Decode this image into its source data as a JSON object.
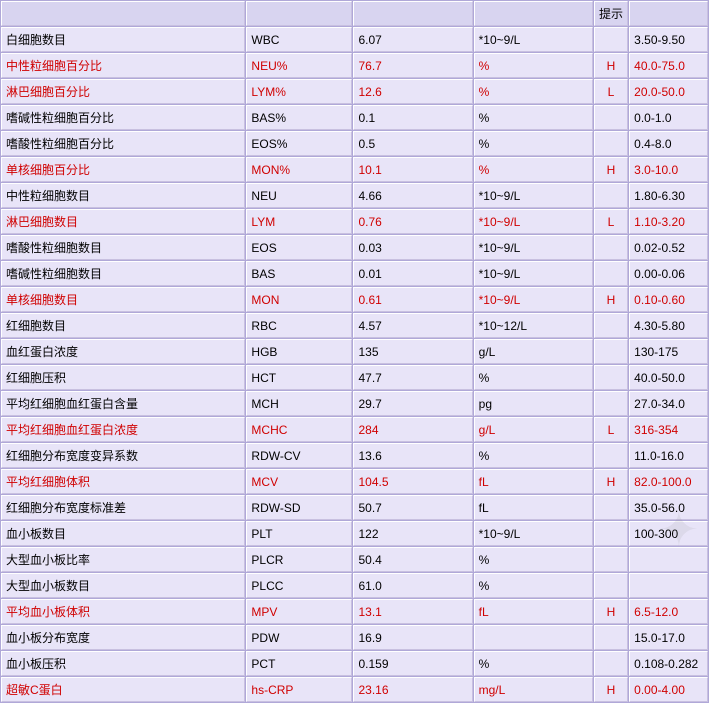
{
  "header": {
    "flag_label": "提示"
  },
  "columns": {
    "widths": {
      "name": 242,
      "code": 105,
      "value": 118,
      "unit": 118,
      "flag": 28,
      "ref": 78
    }
  },
  "colors": {
    "row_bg": "#e8e4f8",
    "grid_bg": "#b0a8d8",
    "header_bg": "#d8d4f0",
    "abnormal_text": "#d00000",
    "normal_text": "#000000",
    "border_light": "#ffffff",
    "border_dark": "#c8c0e0"
  },
  "rows": [
    {
      "name": "白细胞数目",
      "code": "WBC",
      "value": "6.07",
      "unit": "*10~9/L",
      "flag": "",
      "ref": "3.50-9.50",
      "abn": false
    },
    {
      "name": "中性粒细胞百分比",
      "code": "NEU%",
      "value": "76.7",
      "unit": "%",
      "flag": "H",
      "ref": "40.0-75.0",
      "abn": true
    },
    {
      "name": "淋巴细胞百分比",
      "code": "LYM%",
      "value": "12.6",
      "unit": "%",
      "flag": "L",
      "ref": "20.0-50.0",
      "abn": true
    },
    {
      "name": "嗜碱性粒细胞百分比",
      "code": "BAS%",
      "value": "0.1",
      "unit": "%",
      "flag": "",
      "ref": "0.0-1.0",
      "abn": false
    },
    {
      "name": "嗜酸性粒细胞百分比",
      "code": "EOS%",
      "value": "0.5",
      "unit": "%",
      "flag": "",
      "ref": "0.4-8.0",
      "abn": false
    },
    {
      "name": "单核细胞百分比",
      "code": "MON%",
      "value": "10.1",
      "unit": "%",
      "flag": "H",
      "ref": "3.0-10.0",
      "abn": true
    },
    {
      "name": "中性粒细胞数目",
      "code": "NEU",
      "value": "4.66",
      "unit": "*10~9/L",
      "flag": "",
      "ref": "1.80-6.30",
      "abn": false
    },
    {
      "name": "淋巴细胞数目",
      "code": "LYM",
      "value": "0.76",
      "unit": "*10~9/L",
      "flag": "L",
      "ref": "1.10-3.20",
      "abn": true
    },
    {
      "name": "嗜酸性粒细胞数目",
      "code": "EOS",
      "value": "0.03",
      "unit": "*10~9/L",
      "flag": "",
      "ref": "0.02-0.52",
      "abn": false
    },
    {
      "name": "嗜碱性粒细胞数目",
      "code": "BAS",
      "value": "0.01",
      "unit": "*10~9/L",
      "flag": "",
      "ref": "0.00-0.06",
      "abn": false
    },
    {
      "name": "单核细胞数目",
      "code": "MON",
      "value": "0.61",
      "unit": "*10~9/L",
      "flag": "H",
      "ref": "0.10-0.60",
      "abn": true
    },
    {
      "name": "红细胞数目",
      "code": "RBC",
      "value": "4.57",
      "unit": "*10~12/L",
      "flag": "",
      "ref": "4.30-5.80",
      "abn": false
    },
    {
      "name": "血红蛋白浓度",
      "code": "HGB",
      "value": "135",
      "unit": "g/L",
      "flag": "",
      "ref": "130-175",
      "abn": false
    },
    {
      "name": "红细胞压积",
      "code": "HCT",
      "value": "47.7",
      "unit": "%",
      "flag": "",
      "ref": "40.0-50.0",
      "abn": false
    },
    {
      "name": "平均红细胞血红蛋白含量",
      "code": "MCH",
      "value": "29.7",
      "unit": "pg",
      "flag": "",
      "ref": "27.0-34.0",
      "abn": false
    },
    {
      "name": "平均红细胞血红蛋白浓度",
      "code": "MCHC",
      "value": "284",
      "unit": "g/L",
      "flag": "L",
      "ref": "316-354",
      "abn": true
    },
    {
      "name": "红细胞分布宽度变异系数",
      "code": "RDW-CV",
      "value": "13.6",
      "unit": "%",
      "flag": "",
      "ref": "11.0-16.0",
      "abn": false
    },
    {
      "name": "平均红细胞体积",
      "code": "MCV",
      "value": "104.5",
      "unit": "fL",
      "flag": "H",
      "ref": "82.0-100.0",
      "abn": true
    },
    {
      "name": "红细胞分布宽度标准差",
      "code": "RDW-SD",
      "value": "50.7",
      "unit": "fL",
      "flag": "",
      "ref": "35.0-56.0",
      "abn": false
    },
    {
      "name": "血小板数目",
      "code": "PLT",
      "value": "122",
      "unit": "*10~9/L",
      "flag": "",
      "ref": "100-300",
      "abn": false
    },
    {
      "name": "大型血小板比率",
      "code": "PLCR",
      "value": "50.4",
      "unit": "%",
      "flag": "",
      "ref": "",
      "abn": false
    },
    {
      "name": "大型血小板数目",
      "code": "PLCC",
      "value": "61.0",
      "unit": "%",
      "flag": "",
      "ref": "",
      "abn": false
    },
    {
      "name": "平均血小板体积",
      "code": "MPV",
      "value": "13.1",
      "unit": "fL",
      "flag": "H",
      "ref": "6.5-12.0",
      "abn": true
    },
    {
      "name": "血小板分布宽度",
      "code": "PDW",
      "value": "16.9",
      "unit": "",
      "flag": "",
      "ref": "15.0-17.0",
      "abn": false
    },
    {
      "name": "血小板压积",
      "code": "PCT",
      "value": "0.159",
      "unit": "%",
      "flag": "",
      "ref": "0.108-0.282",
      "abn": false
    },
    {
      "name": "超敏C蛋白",
      "code": "hs-CRP",
      "value": "23.16",
      "unit": "mg/L",
      "flag": "H",
      "ref": "0.00-4.00",
      "abn": true
    }
  ]
}
